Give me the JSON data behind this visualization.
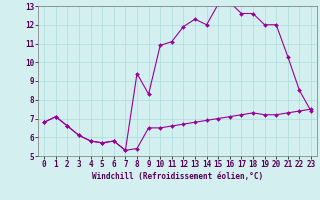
{
  "xlabel": "Windchill (Refroidissement éolien,°C)",
  "background_color": "#d4efef",
  "line_color": "#990099",
  "grid_color": "#aadddd",
  "xlim": [
    -0.5,
    23.5
  ],
  "ylim": [
    5,
    13
  ],
  "xticks": [
    0,
    1,
    2,
    3,
    4,
    5,
    6,
    7,
    8,
    9,
    10,
    11,
    12,
    13,
    14,
    15,
    16,
    17,
    18,
    19,
    20,
    21,
    22,
    23
  ],
  "yticks": [
    5,
    6,
    7,
    8,
    9,
    10,
    11,
    12,
    13
  ],
  "line1_x": [
    0,
    1,
    2,
    3,
    4,
    5,
    6,
    7,
    8,
    9,
    10,
    11,
    12,
    13,
    14,
    15,
    16,
    17,
    18,
    19,
    20,
    21,
    22,
    23
  ],
  "line1_y": [
    6.8,
    7.1,
    6.6,
    6.1,
    5.8,
    5.7,
    5.8,
    5.3,
    5.4,
    6.5,
    6.5,
    6.6,
    6.7,
    6.8,
    6.9,
    7.0,
    7.1,
    7.2,
    7.3,
    7.2,
    7.2,
    7.3,
    7.4,
    7.5
  ],
  "line2_x": [
    0,
    1,
    2,
    3,
    4,
    5,
    6,
    7,
    8,
    9,
    10,
    11,
    12,
    13,
    14,
    15,
    16,
    17,
    18,
    19,
    20,
    21,
    22,
    23
  ],
  "line2_y": [
    6.8,
    7.1,
    6.6,
    6.1,
    5.8,
    5.7,
    5.8,
    5.3,
    9.4,
    8.3,
    10.9,
    11.1,
    11.9,
    12.3,
    12.0,
    13.1,
    13.2,
    12.6,
    12.6,
    12.0,
    12.0,
    10.3,
    8.5,
    7.4
  ],
  "tick_fontsize": 5.5,
  "xlabel_fontsize": 5.5
}
